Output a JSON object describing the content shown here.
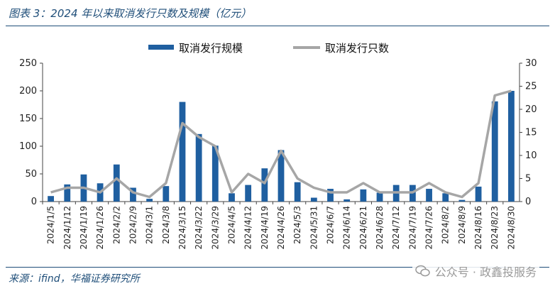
{
  "figure": {
    "title": "图表 3：2024 年以来取消发行只数及规模（亿元）",
    "source": "来源：ifind，华福证券研究所",
    "watermark": "公众号 · 政鑫投服务"
  },
  "chart_data": {
    "type": "bar",
    "title": "图表 3：2024 年以来取消发行只数及规模（亿元）",
    "categories": [
      "2024/1/5",
      "2024/1/12",
      "2024/1/19",
      "2024/1/26",
      "2024/2/2",
      "2024/2/9",
      "2024/3/1",
      "2024/3/8",
      "2024/3/15",
      "2024/3/22",
      "2024/3/29",
      "2024/4/5",
      "2024/4/12",
      "2024/4/19",
      "2024/4/26",
      "2024/5/3",
      "2024/5/31",
      "2024/6/7",
      "2024/6/14",
      "2024/6/21",
      "2024/6/28",
      "2024/7/12",
      "2024/7/19",
      "2024/7/26",
      "2024/8/2",
      "2024/8/9",
      "2024/8/16",
      "2024/8/23",
      "2024/8/30"
    ],
    "series": [
      {
        "name": "取消发行规模",
        "type": "bar",
        "axis": "left",
        "color": "#1f5fa0",
        "values": [
          10,
          31,
          49,
          33,
          67,
          25,
          5,
          28,
          180,
          122,
          101,
          15,
          30,
          60,
          93,
          35,
          7,
          23,
          4,
          22,
          16,
          30,
          30,
          23,
          15,
          3,
          27,
          181,
          200
        ]
      },
      {
        "name": "取消发行只数",
        "type": "line",
        "axis": "right",
        "color": "#a6a6a6",
        "values": [
          2,
          3,
          3,
          2,
          5,
          2,
          1,
          4,
          17,
          14,
          12,
          2,
          6,
          4,
          11,
          5,
          3,
          2,
          2,
          4,
          2,
          2,
          2,
          4,
          2,
          1,
          4,
          23,
          24
        ]
      }
    ],
    "ylim_left": [
      0,
      250
    ],
    "yticks_left": [
      0,
      50,
      100,
      150,
      200,
      250
    ],
    "ylim_right": [
      0,
      30
    ],
    "yticks_right": [
      0,
      5,
      10,
      15,
      20,
      25,
      30
    ],
    "legend": "top-center",
    "grid": false
  }
}
